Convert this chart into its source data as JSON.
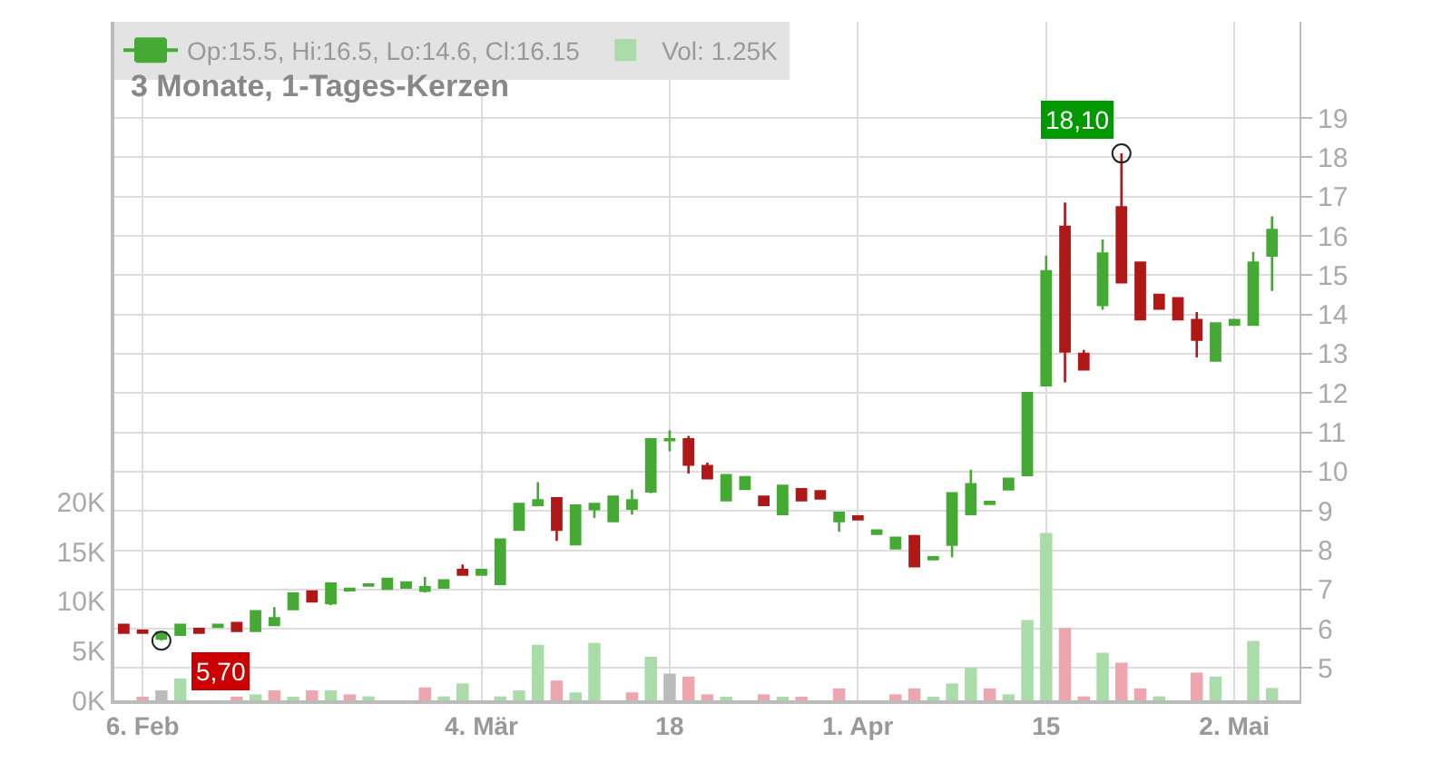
{
  "chart_data": {
    "type": "candlestick",
    "title": "3 Monate, 1-Tages-Kerzen",
    "categories": [
      null,
      "6. Feb",
      null,
      null,
      null,
      null,
      null,
      null,
      null,
      null,
      null,
      null,
      null,
      null,
      null,
      null,
      null,
      null,
      null,
      "4. Mär",
      null,
      null,
      null,
      null,
      null,
      null,
      null,
      null,
      null,
      "18",
      null,
      null,
      null,
      null,
      null,
      null,
      null,
      null,
      null,
      "1. Apr",
      null,
      null,
      null,
      null,
      null,
      null,
      null,
      null,
      null,
      "15",
      null,
      null,
      null,
      null,
      null,
      null,
      null,
      null,
      null,
      "2. Mai",
      null,
      null
    ],
    "series": [
      {
        "name": "Op:15.5, Hi:16.5, Lo:14.6, Cl:16.15",
        "color": "#44aa33",
        "ohlc": [
          [
            6.1,
            6.1,
            5.9,
            5.9
          ],
          [
            5.95,
            5.95,
            5.9,
            5.9
          ],
          [
            5.75,
            5.9,
            5.7,
            5.9
          ],
          [
            5.85,
            6.1,
            5.85,
            6.1
          ],
          [
            6.0,
            6.0,
            5.9,
            5.9
          ],
          [
            6.05,
            6.1,
            6.05,
            6.1
          ],
          [
            6.15,
            6.15,
            5.95,
            5.95
          ],
          [
            5.95,
            6.45,
            5.95,
            6.45
          ],
          [
            6.1,
            6.55,
            6.1,
            6.27
          ],
          [
            6.5,
            6.9,
            6.5,
            6.9
          ],
          [
            6.95,
            6.95,
            6.7,
            6.7
          ],
          [
            6.65,
            7.15,
            6.6,
            7.15
          ],
          [
            6.98,
            7.02,
            6.98,
            7.02
          ],
          [
            7.1,
            7.13,
            7.1,
            7.13
          ],
          [
            7.02,
            7.27,
            7.02,
            7.27
          ],
          [
            7.05,
            7.18,
            7.05,
            7.18
          ],
          [
            6.97,
            7.32,
            6.92,
            7.06
          ],
          [
            7.05,
            7.23,
            7.02,
            7.23
          ],
          [
            7.5,
            7.64,
            7.38,
            7.38
          ],
          [
            7.38,
            7.5,
            7.38,
            7.5
          ],
          [
            7.14,
            8.27,
            7.14,
            8.27
          ],
          [
            8.52,
            9.18,
            8.52,
            9.18
          ],
          [
            9.15,
            9.73,
            9.15,
            9.27
          ],
          [
            9.32,
            9.32,
            8.24,
            8.52
          ],
          [
            8.15,
            9.14,
            8.15,
            9.14
          ],
          [
            9.05,
            9.18,
            8.82,
            9.18
          ],
          [
            8.74,
            9.36,
            8.74,
            9.36
          ],
          [
            9.06,
            9.55,
            8.91,
            9.27
          ],
          [
            9.5,
            10.82,
            9.45,
            10.82
          ],
          [
            10.8,
            11.05,
            10.52,
            10.82
          ],
          [
            10.82,
            10.91,
            9.95,
            10.18
          ],
          [
            10.14,
            10.23,
            9.83,
            9.83
          ],
          [
            9.27,
            9.91,
            9.27,
            9.91
          ],
          [
            9.56,
            9.86,
            9.56,
            9.86
          ],
          [
            9.36,
            9.36,
            9.15,
            9.15
          ],
          [
            8.92,
            9.64,
            8.92,
            9.64
          ],
          [
            9.55,
            9.55,
            9.27,
            9.27
          ],
          [
            9.5,
            9.5,
            9.32,
            9.32
          ],
          [
            8.74,
            8.95,
            8.47,
            8.95
          ],
          [
            8.86,
            8.86,
            8.79,
            8.79
          ],
          [
            8.42,
            8.5,
            8.42,
            8.5
          ],
          [
            8.05,
            8.32,
            8.05,
            8.32
          ],
          [
            8.36,
            8.36,
            7.59,
            7.59
          ],
          [
            7.77,
            7.82,
            7.77,
            7.82
          ],
          [
            8.14,
            9.45,
            7.82,
            9.45
          ],
          [
            8.92,
            10.05,
            8.92,
            9.68
          ],
          [
            9.18,
            9.23,
            9.18,
            9.23
          ],
          [
            9.55,
            9.82,
            9.55,
            9.82
          ],
          [
            9.91,
            12.0,
            9.91,
            12.0
          ],
          [
            12.2,
            15.5,
            12.2,
            15.1
          ],
          [
            16.23,
            16.85,
            12.27,
            13.06
          ],
          [
            13.0,
            13.1,
            12.6,
            12.6
          ],
          [
            14.24,
            15.91,
            14.12,
            15.55
          ],
          [
            16.73,
            18.1,
            14.82,
            14.82
          ],
          [
            15.32,
            15.32,
            13.88,
            13.88
          ],
          [
            14.5,
            14.5,
            14.15,
            14.15
          ],
          [
            14.41,
            14.41,
            13.88,
            13.88
          ],
          [
            13.86,
            14.06,
            12.91,
            13.36
          ],
          [
            12.83,
            13.77,
            12.83,
            13.77
          ],
          [
            13.74,
            13.86,
            13.74,
            13.86
          ],
          [
            13.74,
            15.59,
            13.74,
            15.32
          ],
          [
            15.5,
            16.5,
            14.6,
            16.15
          ]
        ],
        "colors": [
          "#b01818",
          "#b01818",
          "#44aa33",
          "#44aa33",
          "#b01818",
          "#44aa33",
          "#b01818",
          "#44aa33",
          "#44aa33",
          "#44aa33",
          "#b01818",
          "#44aa33",
          "#44aa33",
          "#44aa33",
          "#44aa33",
          "#44aa33",
          "#44aa33",
          "#44aa33",
          "#b01818",
          "#44aa33",
          "#44aa33",
          "#44aa33",
          "#44aa33",
          "#b01818",
          "#44aa33",
          "#44aa33",
          "#44aa33",
          "#44aa33",
          "#44aa33",
          "#44aa33",
          "#b01818",
          "#b01818",
          "#44aa33",
          "#44aa33",
          "#b01818",
          "#44aa33",
          "#b01818",
          "#b01818",
          "#44aa33",
          "#b01818",
          "#44aa33",
          "#44aa33",
          "#b01818",
          "#44aa33",
          "#44aa33",
          "#44aa33",
          "#44aa33",
          "#44aa33",
          "#44aa33",
          "#44aa33",
          "#b01818",
          "#b01818",
          "#44aa33",
          "#b01818",
          "#b01818",
          "#b01818",
          "#b01818",
          "#b01818",
          "#44aa33",
          "#44aa33",
          "#44aa33",
          "#44aa33"
        ]
      },
      {
        "type": "bar",
        "axis": "y2",
        "name": "Vol: 1.25K",
        "color": "#aadcaa",
        "values": [
          null,
          200,
          1000,
          2200,
          null,
          null,
          200,
          600,
          1000,
          200,
          1000,
          1000,
          600,
          400,
          null,
          null,
          1300,
          400,
          1700,
          null,
          400,
          1000,
          5600,
          2000,
          800,
          5800,
          null,
          800,
          4400,
          2700,
          2400,
          600,
          200,
          null,
          600,
          200,
          200,
          null,
          1200,
          null,
          null,
          600,
          1200,
          200,
          1700,
          3300,
          1200,
          600,
          8100,
          16900,
          7300,
          400,
          4800,
          3800,
          1200,
          400,
          null,
          2800,
          2400,
          null,
          6000,
          1250
        ],
        "colors": [
          "#aadcaa",
          "#eea6ae",
          "#bbbbbb",
          "#aadcaa",
          "#aadcaa",
          "#aadcaa",
          "#eea6ae",
          "#aadcaa",
          "#eea6ae",
          "#aadcaa",
          "#eea6ae",
          "#aadcaa",
          "#eea6ae",
          "#aadcaa",
          "#aadcaa",
          "#aadcaa",
          "#eea6ae",
          "#aadcaa",
          "#aadcaa",
          "#aadcaa",
          "#aadcaa",
          "#aadcaa",
          "#aadcaa",
          "#eea6ae",
          "#aadcaa",
          "#aadcaa",
          "#aadcaa",
          "#eea6ae",
          "#aadcaa",
          "#bbbbbb",
          "#eea6ae",
          "#eea6ae",
          "#aadcaa",
          "#aadcaa",
          "#eea6ae",
          "#aadcaa",
          "#eea6ae",
          "#aadcaa",
          "#eea6ae",
          "#aadcaa",
          "#aadcaa",
          "#eea6ae",
          "#eea6ae",
          "#aadcaa",
          "#aadcaa",
          "#aadcaa",
          "#eea6ae",
          "#aadcaa",
          "#aadcaa",
          "#aadcaa",
          "#eea6ae",
          "#eea6ae",
          "#aadcaa",
          "#eea6ae",
          "#eea6ae",
          "#aadcaa",
          "#aadcaa",
          "#eea6ae",
          "#aadcaa",
          "#aadcaa",
          "#aadcaa",
          "#aadcaa"
        ]
      }
    ],
    "ylim": [
      4.18,
      21.45
    ],
    "yticks": [
      5,
      6,
      7,
      8,
      9,
      10,
      11,
      12,
      13,
      14,
      15,
      16,
      17,
      18,
      19
    ],
    "y2lim": [
      0,
      68500
    ],
    "y2ticks": [
      {
        "value": 0,
        "label": "0K"
      },
      {
        "value": 5000,
        "label": "5K"
      },
      {
        "value": 10000,
        "label": "10K"
      },
      {
        "value": 15000,
        "label": "15K"
      },
      {
        "value": 20000,
        "label": "20K"
      }
    ],
    "annotations": [
      "18,10",
      "5,70"
    ],
    "grid": true,
    "legend": "top left"
  }
}
